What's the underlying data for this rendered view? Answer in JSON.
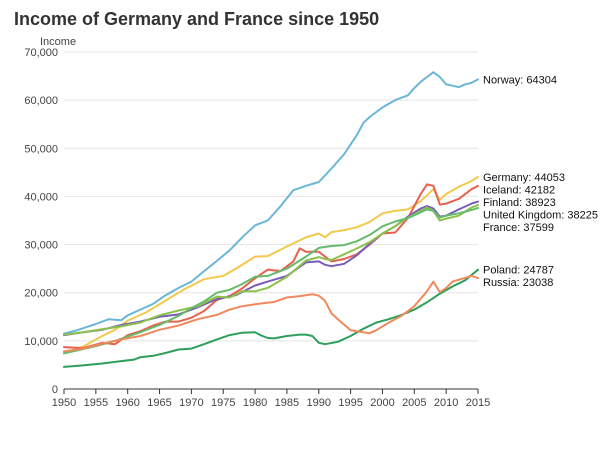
{
  "chart_data": {
    "type": "line",
    "title": "Income of Germany and France since 1950",
    "xlabel": "",
    "ylabel": "Income",
    "xlim": [
      1950,
      2015
    ],
    "ylim": [
      0,
      70000
    ],
    "x_ticks": [
      1950,
      1955,
      1960,
      1965,
      1970,
      1975,
      1980,
      1985,
      1990,
      1995,
      2000,
      2005,
      2010,
      2015
    ],
    "y_ticks": [
      0,
      10000,
      20000,
      30000,
      40000,
      50000,
      60000,
      70000
    ],
    "y_tick_labels": [
      "0",
      "10,000",
      "20,000",
      "30,000",
      "40,000",
      "50,000",
      "60,000",
      "70,000"
    ],
    "grid": "horizontal",
    "legend": "end labels at right of each line",
    "series": [
      {
        "name": "Norway",
        "color": "#6ab6d8",
        "end_label": "Norway: 64304",
        "points": [
          [
            1950,
            11500
          ],
          [
            1952,
            12200
          ],
          [
            1955,
            13500
          ],
          [
            1957,
            14500
          ],
          [
            1959,
            14300
          ],
          [
            1960,
            15300
          ],
          [
            1962,
            16500
          ],
          [
            1964,
            17700
          ],
          [
            1966,
            19500
          ],
          [
            1968,
            21000
          ],
          [
            1970,
            22300
          ],
          [
            1972,
            24500
          ],
          [
            1974,
            26600
          ],
          [
            1976,
            28800
          ],
          [
            1978,
            31500
          ],
          [
            1980,
            34000
          ],
          [
            1982,
            35000
          ],
          [
            1984,
            38000
          ],
          [
            1986,
            41300
          ],
          [
            1988,
            42200
          ],
          [
            1990,
            43000
          ],
          [
            1992,
            45800
          ],
          [
            1994,
            48800
          ],
          [
            1996,
            52800
          ],
          [
            1997,
            55300
          ],
          [
            1998,
            56500
          ],
          [
            2000,
            58500
          ],
          [
            2002,
            60000
          ],
          [
            2004,
            61000
          ],
          [
            2005,
            62500
          ],
          [
            2006,
            63800
          ],
          [
            2007,
            64800
          ],
          [
            2008,
            65800
          ],
          [
            2009,
            64800
          ],
          [
            2010,
            63300
          ],
          [
            2011,
            63000
          ],
          [
            2012,
            62700
          ],
          [
            2013,
            63300
          ],
          [
            2014,
            63600
          ],
          [
            2015,
            64304
          ]
        ]
      },
      {
        "name": "Germany",
        "color": "#f2c94c",
        "end_label": "Germany: 44053",
        "points": [
          [
            1950,
            7500
          ],
          [
            1953,
            8800
          ],
          [
            1956,
            11000
          ],
          [
            1958,
            12300
          ],
          [
            1960,
            14200
          ],
          [
            1963,
            16000
          ],
          [
            1966,
            18400
          ],
          [
            1969,
            20800
          ],
          [
            1972,
            22800
          ],
          [
            1975,
            23500
          ],
          [
            1977,
            25000
          ],
          [
            1980,
            27500
          ],
          [
            1982,
            27600
          ],
          [
            1985,
            29600
          ],
          [
            1988,
            31500
          ],
          [
            1990,
            32300
          ],
          [
            1991,
            31500
          ],
          [
            1992,
            32600
          ],
          [
            1994,
            33000
          ],
          [
            1996,
            33600
          ],
          [
            1998,
            34700
          ],
          [
            2000,
            36500
          ],
          [
            2002,
            37000
          ],
          [
            2004,
            37300
          ],
          [
            2006,
            39000
          ],
          [
            2008,
            41500
          ],
          [
            2009,
            39300
          ],
          [
            2010,
            40500
          ],
          [
            2012,
            42000
          ],
          [
            2014,
            43200
          ],
          [
            2015,
            44053
          ]
        ]
      },
      {
        "name": "Iceland",
        "color": "#e8604e",
        "end_label": "Iceland: 42182",
        "points": [
          [
            1950,
            8700
          ],
          [
            1953,
            8500
          ],
          [
            1956,
            9600
          ],
          [
            1958,
            9300
          ],
          [
            1960,
            11200
          ],
          [
            1962,
            12000
          ],
          [
            1964,
            13200
          ],
          [
            1966,
            14000
          ],
          [
            1968,
            14000
          ],
          [
            1970,
            14800
          ],
          [
            1972,
            16200
          ],
          [
            1974,
            18500
          ],
          [
            1976,
            19300
          ],
          [
            1978,
            20900
          ],
          [
            1980,
            23000
          ],
          [
            1982,
            24800
          ],
          [
            1984,
            24500
          ],
          [
            1986,
            26500
          ],
          [
            1987,
            29200
          ],
          [
            1988,
            28500
          ],
          [
            1990,
            28500
          ],
          [
            1992,
            26500
          ],
          [
            1994,
            27000
          ],
          [
            1996,
            28000
          ],
          [
            1998,
            30000
          ],
          [
            2000,
            32300
          ],
          [
            2002,
            32500
          ],
          [
            2004,
            35500
          ],
          [
            2006,
            40500
          ],
          [
            2007,
            42500
          ],
          [
            2008,
            42200
          ],
          [
            2009,
            38300
          ],
          [
            2010,
            38500
          ],
          [
            2012,
            39500
          ],
          [
            2014,
            41500
          ],
          [
            2015,
            42182
          ]
        ]
      },
      {
        "name": "Finland",
        "color": "#7a5cb8",
        "end_label": "Finland: 38923",
        "points": [
          [
            1950,
            11200
          ],
          [
            1953,
            11800
          ],
          [
            1956,
            12300
          ],
          [
            1959,
            13300
          ],
          [
            1962,
            14000
          ],
          [
            1965,
            15000
          ],
          [
            1968,
            15500
          ],
          [
            1971,
            17000
          ],
          [
            1974,
            18700
          ],
          [
            1977,
            19500
          ],
          [
            1980,
            21500
          ],
          [
            1982,
            22300
          ],
          [
            1985,
            23500
          ],
          [
            1988,
            26300
          ],
          [
            1990,
            26500
          ],
          [
            1991,
            25800
          ],
          [
            1992,
            25500
          ],
          [
            1994,
            26000
          ],
          [
            1996,
            27800
          ],
          [
            1998,
            30200
          ],
          [
            2000,
            32300
          ],
          [
            2002,
            33800
          ],
          [
            2004,
            35800
          ],
          [
            2006,
            37500
          ],
          [
            2007,
            38000
          ],
          [
            2008,
            37500
          ],
          [
            2009,
            35800
          ],
          [
            2010,
            36000
          ],
          [
            2012,
            37300
          ],
          [
            2014,
            38500
          ],
          [
            2015,
            38923
          ]
        ]
      },
      {
        "name": "United Kingdom",
        "color": "#8bc34a",
        "end_label": "United Kingdom: 38225",
        "points": [
          [
            1950,
            11300
          ],
          [
            1953,
            11800
          ],
          [
            1956,
            12400
          ],
          [
            1959,
            13000
          ],
          [
            1962,
            13800
          ],
          [
            1965,
            15300
          ],
          [
            1968,
            16300
          ],
          [
            1971,
            17200
          ],
          [
            1974,
            19200
          ],
          [
            1976,
            19000
          ],
          [
            1978,
            20300
          ],
          [
            1980,
            20300
          ],
          [
            1982,
            21000
          ],
          [
            1985,
            23300
          ],
          [
            1988,
            26700
          ],
          [
            1990,
            27400
          ],
          [
            1991,
            27000
          ],
          [
            1992,
            26800
          ],
          [
            1994,
            28000
          ],
          [
            1996,
            29200
          ],
          [
            1998,
            30500
          ],
          [
            2000,
            32300
          ],
          [
            2002,
            33800
          ],
          [
            2004,
            35600
          ],
          [
            2006,
            37000
          ],
          [
            2007,
            37700
          ],
          [
            2008,
            37000
          ],
          [
            2009,
            35000
          ],
          [
            2010,
            35400
          ],
          [
            2012,
            36000
          ],
          [
            2014,
            37700
          ],
          [
            2015,
            38225
          ]
        ]
      },
      {
        "name": "France",
        "color": "#66bb6a",
        "end_label": "France: 37599",
        "points": [
          [
            1950,
            7400
          ],
          [
            1952,
            8000
          ],
          [
            1955,
            8900
          ],
          [
            1958,
            10000
          ],
          [
            1960,
            10900
          ],
          [
            1962,
            11800
          ],
          [
            1965,
            13300
          ],
          [
            1968,
            15200
          ],
          [
            1970,
            16800
          ],
          [
            1972,
            18200
          ],
          [
            1974,
            20000
          ],
          [
            1976,
            20600
          ],
          [
            1978,
            21800
          ],
          [
            1980,
            23300
          ],
          [
            1982,
            23500
          ],
          [
            1985,
            25000
          ],
          [
            1988,
            27500
          ],
          [
            1990,
            29300
          ],
          [
            1992,
            29700
          ],
          [
            1994,
            29900
          ],
          [
            1996,
            30700
          ],
          [
            1998,
            32000
          ],
          [
            2000,
            33800
          ],
          [
            2002,
            34800
          ],
          [
            2004,
            35500
          ],
          [
            2006,
            36700
          ],
          [
            2007,
            37300
          ],
          [
            2008,
            37000
          ],
          [
            2009,
            35600
          ],
          [
            2010,
            36000
          ],
          [
            2012,
            36500
          ],
          [
            2014,
            37200
          ],
          [
            2015,
            37599
          ]
        ]
      },
      {
        "name": "Poland",
        "color": "#2e9e5b",
        "end_label": "Poland: 24787",
        "points": [
          [
            1950,
            4600
          ],
          [
            1953,
            4900
          ],
          [
            1956,
            5300
          ],
          [
            1959,
            5800
          ],
          [
            1961,
            6100
          ],
          [
            1962,
            6600
          ],
          [
            1964,
            6900
          ],
          [
            1966,
            7500
          ],
          [
            1968,
            8200
          ],
          [
            1970,
            8400
          ],
          [
            1972,
            9300
          ],
          [
            1974,
            10300
          ],
          [
            1976,
            11200
          ],
          [
            1978,
            11700
          ],
          [
            1980,
            11800
          ],
          [
            1981,
            11100
          ],
          [
            1982,
            10600
          ],
          [
            1983,
            10500
          ],
          [
            1985,
            11000
          ],
          [
            1987,
            11300
          ],
          [
            1988,
            11300
          ],
          [
            1989,
            11000
          ],
          [
            1990,
            9600
          ],
          [
            1991,
            9300
          ],
          [
            1993,
            9800
          ],
          [
            1995,
            11000
          ],
          [
            1997,
            12500
          ],
          [
            1999,
            13800
          ],
          [
            2001,
            14500
          ],
          [
            2003,
            15400
          ],
          [
            2005,
            16500
          ],
          [
            2007,
            18000
          ],
          [
            2009,
            19800
          ],
          [
            2011,
            21300
          ],
          [
            2013,
            22600
          ],
          [
            2015,
            24787
          ]
        ]
      },
      {
        "name": "Russia",
        "color": "#f08a5d",
        "end_label": "Russia: 23038",
        "points": [
          [
            1950,
            7800
          ],
          [
            1953,
            8400
          ],
          [
            1956,
            9400
          ],
          [
            1959,
            10300
          ],
          [
            1962,
            11000
          ],
          [
            1965,
            12300
          ],
          [
            1968,
            13200
          ],
          [
            1971,
            14500
          ],
          [
            1974,
            15400
          ],
          [
            1976,
            16500
          ],
          [
            1978,
            17200
          ],
          [
            1980,
            17600
          ],
          [
            1983,
            18100
          ],
          [
            1985,
            19000
          ],
          [
            1987,
            19300
          ],
          [
            1989,
            19700
          ],
          [
            1990,
            19400
          ],
          [
            1991,
            18300
          ],
          [
            1992,
            15700
          ],
          [
            1993,
            14500
          ],
          [
            1995,
            12200
          ],
          [
            1998,
            11600
          ],
          [
            1999,
            12200
          ],
          [
            2001,
            13800
          ],
          [
            2003,
            15200
          ],
          [
            2005,
            17200
          ],
          [
            2007,
            20300
          ],
          [
            2008,
            22300
          ],
          [
            2009,
            20100
          ],
          [
            2010,
            21000
          ],
          [
            2011,
            22300
          ],
          [
            2013,
            23100
          ],
          [
            2014,
            23500
          ],
          [
            2015,
            23038
          ]
        ]
      }
    ]
  }
}
